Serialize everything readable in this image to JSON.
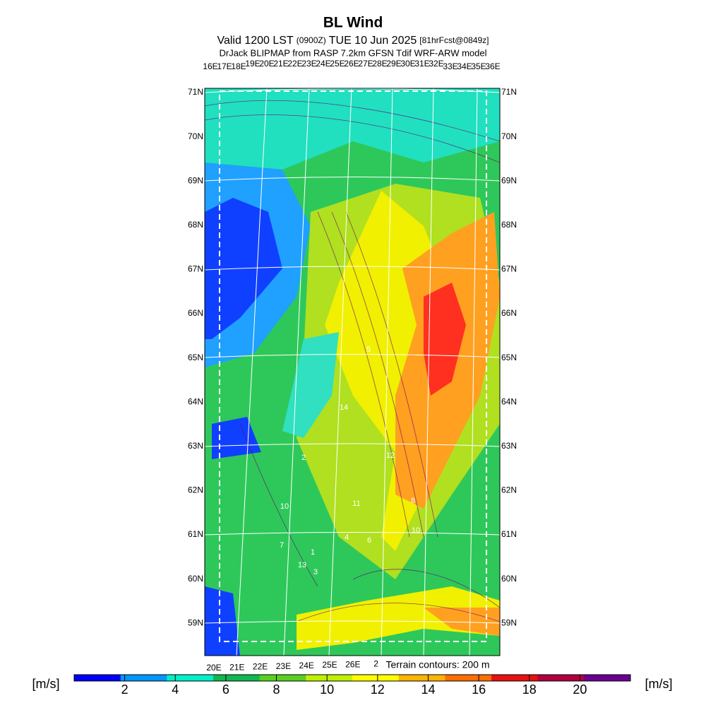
{
  "header": {
    "title": "BL Wind",
    "valid": "Valid 1200 LST",
    "zulu": "(0900Z)",
    "date": "TUE 10 Jun 2025",
    "forecast": "[81hrFcst@0849z]",
    "model": "DrJack BLIPMAP from RASP 7.2km GFSN Tdif WRF-ARW model"
  },
  "map": {
    "top_longitudes": [
      "16E",
      "17E",
      "18E",
      "19E",
      "20E",
      "21E",
      "22E",
      "23E",
      "24E",
      "25E",
      "26E",
      "27E",
      "28E",
      "29E",
      "30E",
      "31E",
      "32E",
      "33E",
      "34E",
      "35E",
      "36E"
    ],
    "bottom_longitudes": [
      "20E",
      "21E",
      "22E",
      "23E",
      "24E",
      "25E",
      "26E",
      "2"
    ],
    "latitudes": [
      "71N",
      "70N",
      "69N",
      "68N",
      "67N",
      "66N",
      "65N",
      "64N",
      "63N",
      "62N",
      "61N",
      "60N",
      "59N"
    ],
    "terrain_note": "Terrain contours: 200 m",
    "contour_labels": [
      "5",
      "14",
      "2",
      "12",
      "10",
      "11",
      "8",
      "10",
      "4",
      "6",
      "7",
      "1",
      "13",
      "3"
    ]
  },
  "colorbar": {
    "unit": "[m/s]",
    "lim": [
      0,
      22
    ],
    "ticks": [
      2,
      4,
      6,
      8,
      10,
      12,
      14,
      16,
      18,
      20
    ],
    "colors": [
      "#0000f8",
      "#0096ff",
      "#00f0c8",
      "#10b850",
      "#58d020",
      "#c0f000",
      "#ffff00",
      "#ffb400",
      "#ff6e00",
      "#e81010",
      "#b00040",
      "#6a0090"
    ]
  }
}
